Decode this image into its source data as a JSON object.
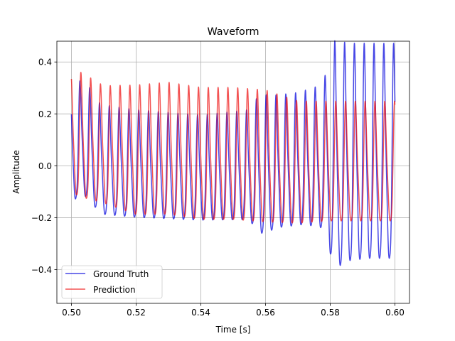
{
  "chart_data": {
    "type": "line",
    "title": "Waveform",
    "xlabel": "Time [s]",
    "ylabel": "Amplitude",
    "xlim": [
      0.4955,
      0.6045
    ],
    "ylim": [
      -0.53,
      0.48
    ],
    "xticks": [
      0.5,
      0.52,
      0.54,
      0.56,
      0.58,
      0.6
    ],
    "xtick_labels": [
      "0.50",
      "0.52",
      "0.54",
      "0.56",
      "0.58",
      "0.60"
    ],
    "yticks": [
      -0.4,
      -0.2,
      0.0,
      0.2,
      0.4
    ],
    "ytick_labels": [
      "−0.4",
      "−0.2",
      "0.0",
      "0.2",
      "0.4"
    ],
    "grid": true,
    "legend_position": "lower-left",
    "series": [
      {
        "name": "Ground Truth",
        "color": "#0000dd",
        "x_start": 0.5,
        "x_end": 0.6,
        "freq_hz": 330,
        "phase": 0.6,
        "peaks": [
          [
            0.5,
            0.3
          ],
          [
            0.503,
            0.3
          ],
          [
            0.506,
            0.27
          ],
          [
            0.509,
            0.21
          ],
          [
            0.52,
            0.19
          ],
          [
            0.54,
            0.17
          ],
          [
            0.555,
            0.19
          ],
          [
            0.558,
            0.24
          ],
          [
            0.563,
            0.24
          ],
          [
            0.57,
            0.25
          ],
          [
            0.578,
            0.28
          ],
          [
            0.58,
            0.43
          ],
          [
            0.586,
            0.42
          ],
          [
            0.592,
            0.42
          ],
          [
            0.6,
            0.42
          ]
        ],
        "troughs": [
          [
            0.5,
            -0.21
          ],
          [
            0.503,
            -0.15
          ],
          [
            0.506,
            -0.2
          ],
          [
            0.51,
            -0.24
          ],
          [
            0.52,
            -0.25
          ],
          [
            0.54,
            -0.26
          ],
          [
            0.555,
            -0.26
          ],
          [
            0.558,
            -0.33
          ],
          [
            0.565,
            -0.3
          ],
          [
            0.572,
            -0.29
          ],
          [
            0.578,
            -0.31
          ],
          [
            0.58,
            -0.44
          ],
          [
            0.582,
            -0.5
          ],
          [
            0.586,
            -0.47
          ],
          [
            0.592,
            -0.46
          ],
          [
            0.6,
            -0.46
          ]
        ]
      },
      {
        "name": "Prediction",
        "color": "#ee1111",
        "x_start": 0.5,
        "x_end": 0.6,
        "freq_hz": 330,
        "phase": 0.0,
        "peaks": [
          [
            0.5,
            0.32
          ],
          [
            0.503,
            0.33
          ],
          [
            0.51,
            0.28
          ],
          [
            0.52,
            0.28
          ],
          [
            0.53,
            0.29
          ],
          [
            0.54,
            0.27
          ],
          [
            0.55,
            0.27
          ],
          [
            0.56,
            0.26
          ],
          [
            0.57,
            0.22
          ],
          [
            0.58,
            0.22
          ],
          [
            0.59,
            0.22
          ],
          [
            0.6,
            0.22
          ]
        ],
        "troughs": [
          [
            0.5,
            -0.16
          ],
          [
            0.503,
            -0.18
          ],
          [
            0.51,
            -0.2
          ],
          [
            0.52,
            -0.25
          ],
          [
            0.53,
            -0.25
          ],
          [
            0.54,
            -0.27
          ],
          [
            0.55,
            -0.27
          ],
          [
            0.56,
            -0.28
          ],
          [
            0.57,
            -0.28
          ],
          [
            0.58,
            -0.27
          ],
          [
            0.59,
            -0.27
          ],
          [
            0.6,
            -0.27
          ]
        ]
      }
    ]
  }
}
